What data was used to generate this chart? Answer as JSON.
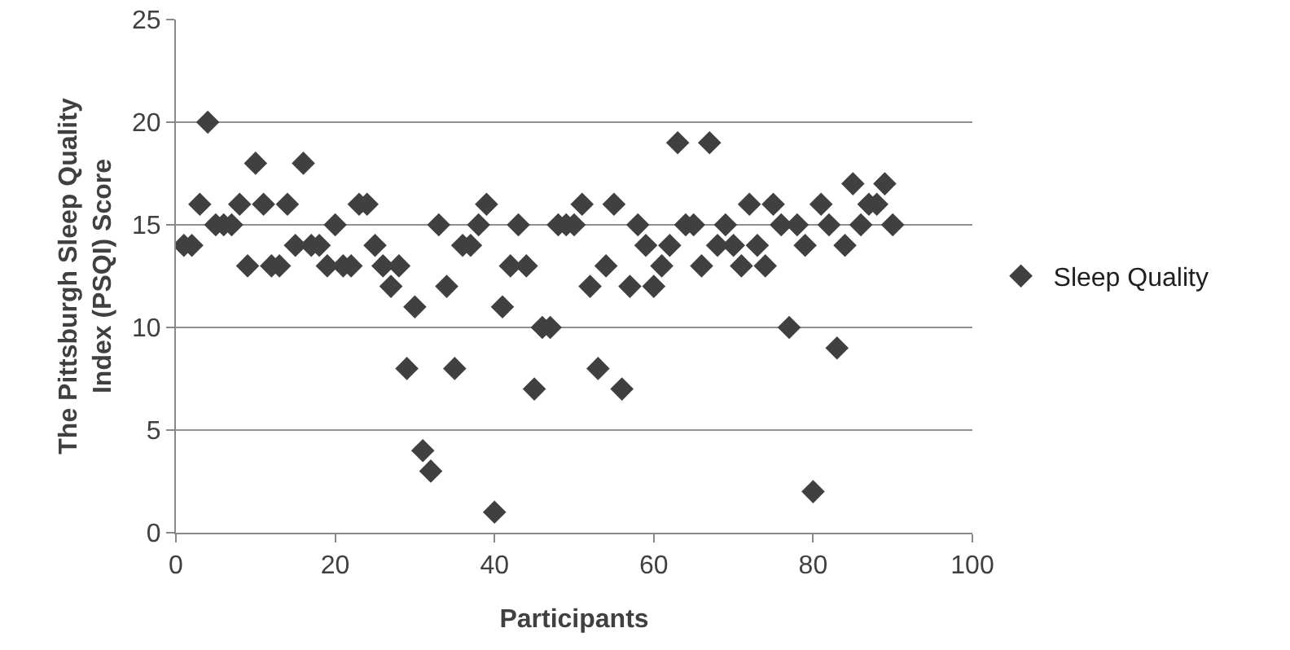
{
  "chart_data": {
    "type": "scatter",
    "xlabel": "Participants",
    "ylabel": "The Pittsburgh Sleep Quality Index (PSQI) Score",
    "x": [
      1,
      2,
      3,
      4,
      5,
      6,
      7,
      8,
      9,
      10,
      11,
      12,
      13,
      14,
      15,
      16,
      17,
      18,
      19,
      20,
      21,
      22,
      23,
      24,
      25,
      26,
      27,
      28,
      29,
      30,
      31,
      32,
      33,
      34,
      35,
      36,
      37,
      38,
      39,
      40,
      41,
      42,
      43,
      44,
      45,
      46,
      47,
      48,
      49,
      50,
      51,
      52,
      53,
      54,
      55,
      56,
      57,
      58,
      59,
      60,
      61,
      62,
      63,
      64,
      65,
      66,
      67,
      68,
      69,
      70,
      71,
      72,
      73,
      74,
      75,
      76,
      77,
      78,
      79,
      80,
      81,
      82,
      83,
      84,
      85,
      86,
      87,
      88,
      89,
      90
    ],
    "series": [
      {
        "name": "Sleep Quality",
        "color": "#404040",
        "values": [
          14,
          14,
          16,
          20,
          15,
          15,
          15,
          16,
          13,
          18,
          16,
          13,
          13,
          16,
          14,
          18,
          14,
          14,
          13,
          15,
          13,
          13,
          16,
          16,
          14,
          13,
          12,
          13,
          8,
          11,
          4,
          3,
          15,
          12,
          8,
          14,
          14,
          15,
          16,
          1,
          11,
          13,
          15,
          13,
          7,
          10,
          10,
          15,
          15,
          15,
          16,
          12,
          8,
          13,
          16,
          7,
          12,
          15,
          14,
          12,
          13,
          14,
          19,
          15,
          15,
          13,
          19,
          14,
          15,
          14,
          13,
          16,
          14,
          13,
          16,
          15,
          10,
          15,
          14,
          2,
          16,
          15,
          9,
          14,
          17,
          15,
          16,
          16,
          17,
          15
        ]
      }
    ],
    "xlim": [
      0,
      100
    ],
    "xticks": [
      0,
      20,
      40,
      60,
      80,
      100
    ],
    "ylim": [
      0,
      25
    ],
    "yticks": [
      0,
      5,
      10,
      15,
      20,
      25
    ],
    "grid": "y",
    "legend": "right",
    "marker": "diamond"
  }
}
